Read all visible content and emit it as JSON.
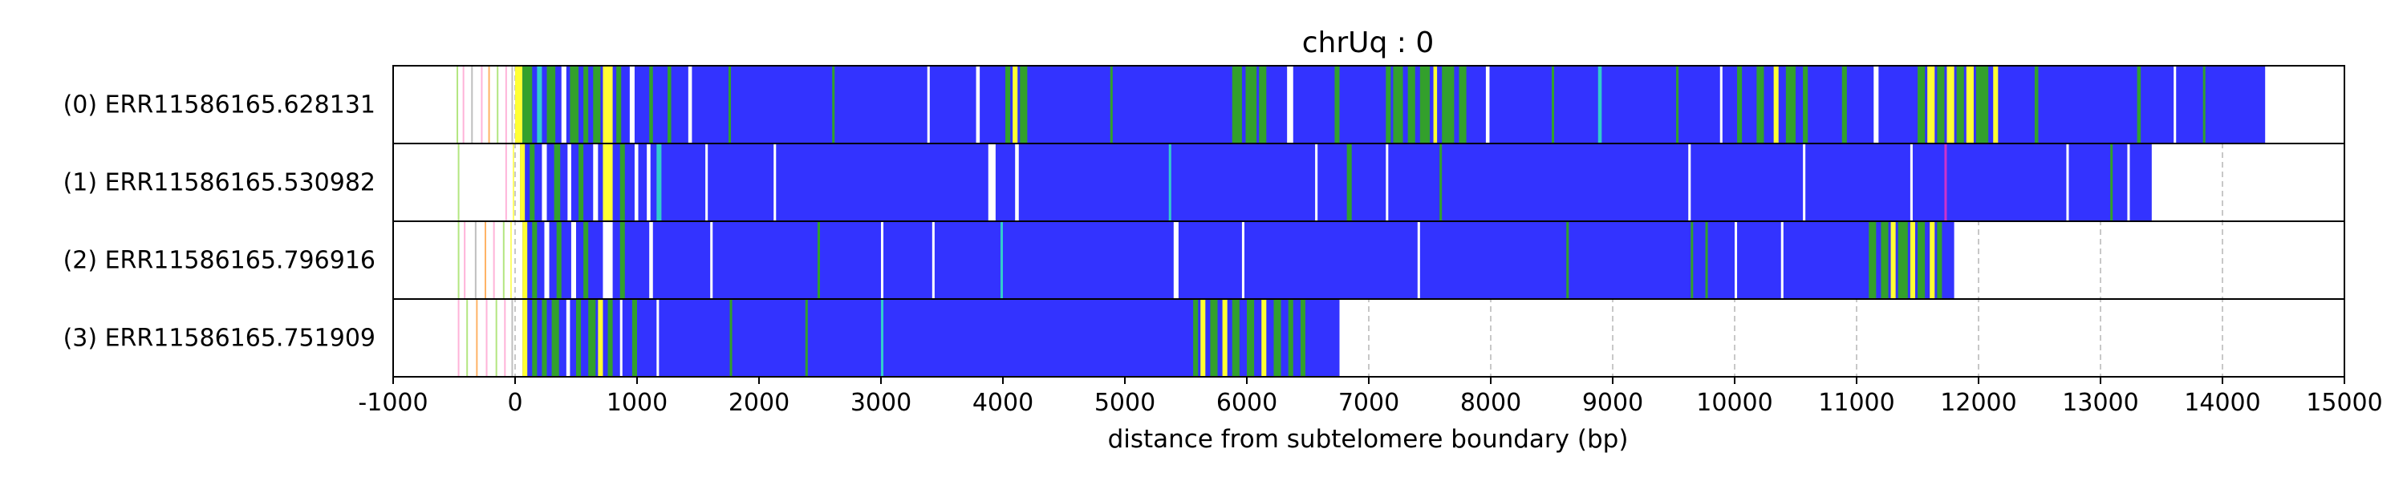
{
  "chart_data": {
    "type": "bar",
    "title": "chrUq : 0",
    "xlabel": "distance from subtelomere boundary (bp)",
    "ylabel": "",
    "xlim": [
      -1000,
      15000
    ],
    "x_ticks": [
      -1000,
      0,
      1000,
      2000,
      3000,
      4000,
      5000,
      6000,
      7000,
      8000,
      9000,
      10000,
      11000,
      12000,
      13000,
      14000,
      15000
    ],
    "grid": "vertical dashed at each 1000 bp",
    "base_color": "#3333ff",
    "stripe_colors": {
      "green": "#33a02c",
      "yellow": "#ffff33",
      "cyan": "#33cccc",
      "white": "#ffffff",
      "magenta": "#cc33cc",
      "orange": "#ff9933",
      "pink": "#ff99cc",
      "lightgreen": "#99dd55",
      "gray": "#aaaaaa"
    },
    "reads": [
      {
        "label": "(0) ERR11586165.628131",
        "start": 0,
        "end": 14350,
        "pre_ticks": [
          {
            "x": -480,
            "color": "lightgreen"
          },
          {
            "x": -430,
            "color": "pink"
          },
          {
            "x": -360,
            "color": "gray"
          },
          {
            "x": -280,
            "color": "pink"
          },
          {
            "x": -220,
            "color": "orange"
          },
          {
            "x": -150,
            "color": "lightgreen"
          },
          {
            "x": -80,
            "color": "pink"
          },
          {
            "x": -30,
            "color": "gray"
          }
        ],
        "stripes": [
          {
            "from": 0,
            "to": 60,
            "color": "yellow"
          },
          {
            "from": 60,
            "to": 140,
            "color": "green"
          },
          {
            "from": 180,
            "to": 220,
            "color": "cyan"
          },
          {
            "from": 260,
            "to": 330,
            "color": "green"
          },
          {
            "from": 380,
            "to": 420,
            "color": "white"
          },
          {
            "from": 450,
            "to": 520,
            "color": "green"
          },
          {
            "from": 560,
            "to": 600,
            "color": "green"
          },
          {
            "from": 640,
            "to": 700,
            "color": "green"
          },
          {
            "from": 720,
            "to": 800,
            "color": "yellow"
          },
          {
            "from": 830,
            "to": 870,
            "color": "green"
          },
          {
            "from": 940,
            "to": 980,
            "color": "white"
          },
          {
            "from": 1100,
            "to": 1130,
            "color": "green"
          },
          {
            "from": 1250,
            "to": 1280,
            "color": "green"
          },
          {
            "from": 1420,
            "to": 1450,
            "color": "white"
          },
          {
            "from": 1750,
            "to": 1770,
            "color": "green"
          },
          {
            "from": 2600,
            "to": 2620,
            "color": "green"
          },
          {
            "from": 3380,
            "to": 3400,
            "color": "white"
          },
          {
            "from": 3780,
            "to": 3810,
            "color": "white"
          },
          {
            "from": 4020,
            "to": 4060,
            "color": "green"
          },
          {
            "from": 4080,
            "to": 4120,
            "color": "yellow"
          },
          {
            "from": 4140,
            "to": 4200,
            "color": "green"
          },
          {
            "from": 4880,
            "to": 4900,
            "color": "green"
          },
          {
            "from": 5880,
            "to": 5960,
            "color": "green"
          },
          {
            "from": 5990,
            "to": 6080,
            "color": "green"
          },
          {
            "from": 6100,
            "to": 6160,
            "color": "green"
          },
          {
            "from": 6330,
            "to": 6380,
            "color": "white"
          },
          {
            "from": 6720,
            "to": 6760,
            "color": "green"
          },
          {
            "from": 7140,
            "to": 7180,
            "color": "green"
          },
          {
            "from": 7200,
            "to": 7280,
            "color": "green"
          },
          {
            "from": 7320,
            "to": 7380,
            "color": "green"
          },
          {
            "from": 7420,
            "to": 7500,
            "color": "green"
          },
          {
            "from": 7530,
            "to": 7560,
            "color": "yellow"
          },
          {
            "from": 7600,
            "to": 7700,
            "color": "green"
          },
          {
            "from": 7740,
            "to": 7800,
            "color": "green"
          },
          {
            "from": 7960,
            "to": 7990,
            "color": "white"
          },
          {
            "from": 8500,
            "to": 8520,
            "color": "green"
          },
          {
            "from": 8880,
            "to": 8910,
            "color": "cyan"
          },
          {
            "from": 9520,
            "to": 9540,
            "color": "green"
          },
          {
            "from": 9880,
            "to": 9900,
            "color": "white"
          },
          {
            "from": 10020,
            "to": 10060,
            "color": "green"
          },
          {
            "from": 10180,
            "to": 10240,
            "color": "green"
          },
          {
            "from": 10320,
            "to": 10360,
            "color": "yellow"
          },
          {
            "from": 10420,
            "to": 10500,
            "color": "green"
          },
          {
            "from": 10560,
            "to": 10600,
            "color": "green"
          },
          {
            "from": 10880,
            "to": 10920,
            "color": "green"
          },
          {
            "from": 11140,
            "to": 11180,
            "color": "white"
          },
          {
            "from": 11500,
            "to": 11560,
            "color": "green"
          },
          {
            "from": 11580,
            "to": 11640,
            "color": "yellow"
          },
          {
            "from": 11660,
            "to": 11720,
            "color": "green"
          },
          {
            "from": 11740,
            "to": 11800,
            "color": "yellow"
          },
          {
            "from": 11820,
            "to": 11880,
            "color": "green"
          },
          {
            "from": 11900,
            "to": 11960,
            "color": "yellow"
          },
          {
            "from": 11980,
            "to": 12080,
            "color": "green"
          },
          {
            "from": 12120,
            "to": 12160,
            "color": "yellow"
          },
          {
            "from": 12460,
            "to": 12490,
            "color": "green"
          },
          {
            "from": 13300,
            "to": 13330,
            "color": "green"
          },
          {
            "from": 13600,
            "to": 13620,
            "color": "white"
          },
          {
            "from": 13840,
            "to": 13860,
            "color": "green"
          }
        ]
      },
      {
        "label": "(1) ERR11586165.530982",
        "start": 40,
        "end": 13420,
        "pre_ticks": [
          {
            "x": -470,
            "color": "lightgreen"
          },
          {
            "x": -80,
            "color": "pink"
          },
          {
            "x": -20,
            "color": "yellow"
          }
        ],
        "stripes": [
          {
            "from": 40,
            "to": 80,
            "color": "yellow"
          },
          {
            "from": 120,
            "to": 160,
            "color": "green"
          },
          {
            "from": 220,
            "to": 260,
            "color": "white"
          },
          {
            "from": 320,
            "to": 370,
            "color": "green"
          },
          {
            "from": 430,
            "to": 460,
            "color": "white"
          },
          {
            "from": 520,
            "to": 560,
            "color": "green"
          },
          {
            "from": 640,
            "to": 680,
            "color": "white"
          },
          {
            "from": 720,
            "to": 800,
            "color": "yellow"
          },
          {
            "from": 860,
            "to": 900,
            "color": "green"
          },
          {
            "from": 980,
            "to": 1010,
            "color": "white"
          },
          {
            "from": 1080,
            "to": 1110,
            "color": "white"
          },
          {
            "from": 1160,
            "to": 1200,
            "color": "cyan"
          },
          {
            "from": 1560,
            "to": 1580,
            "color": "white"
          },
          {
            "from": 2120,
            "to": 2140,
            "color": "white"
          },
          {
            "from": 3880,
            "to": 3940,
            "color": "white"
          },
          {
            "from": 4100,
            "to": 4130,
            "color": "white"
          },
          {
            "from": 5360,
            "to": 5380,
            "color": "cyan"
          },
          {
            "from": 6560,
            "to": 6580,
            "color": "white"
          },
          {
            "from": 6820,
            "to": 6860,
            "color": "green"
          },
          {
            "from": 7140,
            "to": 7160,
            "color": "white"
          },
          {
            "from": 7580,
            "to": 7600,
            "color": "green"
          },
          {
            "from": 9620,
            "to": 9640,
            "color": "white"
          },
          {
            "from": 10560,
            "to": 10580,
            "color": "white"
          },
          {
            "from": 11440,
            "to": 11460,
            "color": "white"
          },
          {
            "from": 11720,
            "to": 11740,
            "color": "magenta"
          },
          {
            "from": 12720,
            "to": 12740,
            "color": "white"
          },
          {
            "from": 13080,
            "to": 13100,
            "color": "green"
          },
          {
            "from": 13220,
            "to": 13240,
            "color": "white"
          }
        ]
      },
      {
        "label": "(2) ERR11586165.796916",
        "start": 60,
        "end": 11800,
        "pre_ticks": [
          {
            "x": -470,
            "color": "lightgreen"
          },
          {
            "x": -420,
            "color": "pink"
          },
          {
            "x": -330,
            "color": "gray"
          },
          {
            "x": -250,
            "color": "orange"
          },
          {
            "x": -180,
            "color": "pink"
          },
          {
            "x": -100,
            "color": "lightgreen"
          },
          {
            "x": -40,
            "color": "yellow"
          }
        ],
        "stripes": [
          {
            "from": 60,
            "to": 100,
            "color": "yellow"
          },
          {
            "from": 140,
            "to": 180,
            "color": "green"
          },
          {
            "from": 240,
            "to": 280,
            "color": "white"
          },
          {
            "from": 340,
            "to": 380,
            "color": "green"
          },
          {
            "from": 460,
            "to": 500,
            "color": "white"
          },
          {
            "from": 560,
            "to": 600,
            "color": "green"
          },
          {
            "from": 720,
            "to": 800,
            "color": "white"
          },
          {
            "from": 860,
            "to": 900,
            "color": "green"
          },
          {
            "from": 1100,
            "to": 1130,
            "color": "white"
          },
          {
            "from": 1600,
            "to": 1620,
            "color": "white"
          },
          {
            "from": 2480,
            "to": 2500,
            "color": "green"
          },
          {
            "from": 3000,
            "to": 3020,
            "color": "white"
          },
          {
            "from": 3420,
            "to": 3440,
            "color": "white"
          },
          {
            "from": 3980,
            "to": 4000,
            "color": "cyan"
          },
          {
            "from": 5400,
            "to": 5440,
            "color": "white"
          },
          {
            "from": 5960,
            "to": 5980,
            "color": "white"
          },
          {
            "from": 7400,
            "to": 7420,
            "color": "white"
          },
          {
            "from": 8620,
            "to": 8640,
            "color": "green"
          },
          {
            "from": 9640,
            "to": 9660,
            "color": "green"
          },
          {
            "from": 9760,
            "to": 9780,
            "color": "green"
          },
          {
            "from": 10000,
            "to": 10020,
            "color": "white"
          },
          {
            "from": 10380,
            "to": 10400,
            "color": "white"
          },
          {
            "from": 11100,
            "to": 11160,
            "color": "green"
          },
          {
            "from": 11200,
            "to": 11260,
            "color": "green"
          },
          {
            "from": 11280,
            "to": 11320,
            "color": "yellow"
          },
          {
            "from": 11340,
            "to": 11420,
            "color": "green"
          },
          {
            "from": 11440,
            "to": 11480,
            "color": "yellow"
          },
          {
            "from": 11500,
            "to": 11560,
            "color": "green"
          },
          {
            "from": 11600,
            "to": 11640,
            "color": "yellow"
          },
          {
            "from": 11660,
            "to": 11700,
            "color": "green"
          }
        ]
      },
      {
        "label": "(3) ERR11586165.751909",
        "start": 60,
        "end": 6760,
        "pre_ticks": [
          {
            "x": -470,
            "color": "pink"
          },
          {
            "x": -400,
            "color": "lightgreen"
          },
          {
            "x": -320,
            "color": "orange"
          },
          {
            "x": -240,
            "color": "pink"
          },
          {
            "x": -160,
            "color": "lightgreen"
          },
          {
            "x": -90,
            "color": "pink"
          },
          {
            "x": -30,
            "color": "gray"
          }
        ],
        "stripes": [
          {
            "from": 60,
            "to": 100,
            "color": "yellow"
          },
          {
            "from": 140,
            "to": 180,
            "color": "green"
          },
          {
            "from": 220,
            "to": 260,
            "color": "green"
          },
          {
            "from": 300,
            "to": 360,
            "color": "green"
          },
          {
            "from": 420,
            "to": 450,
            "color": "white"
          },
          {
            "from": 500,
            "to": 540,
            "color": "green"
          },
          {
            "from": 600,
            "to": 660,
            "color": "green"
          },
          {
            "from": 680,
            "to": 720,
            "color": "yellow"
          },
          {
            "from": 760,
            "to": 800,
            "color": "green"
          },
          {
            "from": 860,
            "to": 880,
            "color": "white"
          },
          {
            "from": 960,
            "to": 1000,
            "color": "green"
          },
          {
            "from": 1160,
            "to": 1180,
            "color": "white"
          },
          {
            "from": 1760,
            "to": 1780,
            "color": "green"
          },
          {
            "from": 2380,
            "to": 2400,
            "color": "green"
          },
          {
            "from": 3000,
            "to": 3020,
            "color": "cyan"
          },
          {
            "from": 5560,
            "to": 5600,
            "color": "green"
          },
          {
            "from": 5620,
            "to": 5660,
            "color": "yellow"
          },
          {
            "from": 5700,
            "to": 5760,
            "color": "green"
          },
          {
            "from": 5800,
            "to": 5840,
            "color": "yellow"
          },
          {
            "from": 5880,
            "to": 5940,
            "color": "green"
          },
          {
            "from": 6000,
            "to": 6060,
            "color": "green"
          },
          {
            "from": 6120,
            "to": 6160,
            "color": "yellow"
          },
          {
            "from": 6220,
            "to": 6280,
            "color": "green"
          },
          {
            "from": 6340,
            "to": 6380,
            "color": "green"
          },
          {
            "from": 6440,
            "to": 6480,
            "color": "green"
          }
        ]
      }
    ]
  }
}
